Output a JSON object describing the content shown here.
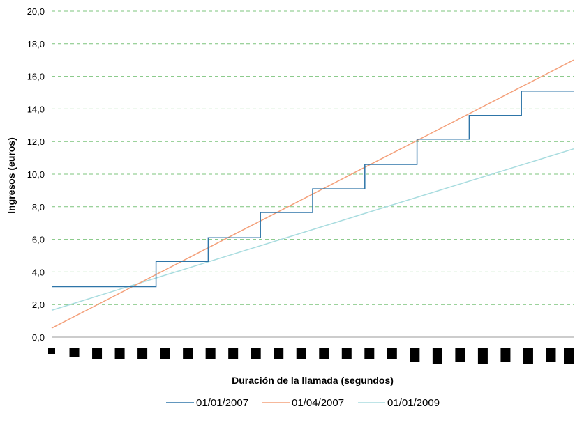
{
  "chart_data": {
    "type": "line",
    "title": "",
    "xlabel": "Duración de la llamada (segundos)",
    "ylabel": "Ingresos (euros)",
    "ylim": [
      0,
      20
    ],
    "yticks": [
      "0,0",
      "2,0",
      "4,0",
      "6,0",
      "8,0",
      "10,0",
      "12,0",
      "14,0",
      "16,0",
      "18,0",
      "20,0"
    ],
    "grid": "horizontal dashed",
    "legend_position": "bottom",
    "x_tick_labels": "illegible (rendered as black blocks)",
    "x_range": [
      0,
      1500
    ],
    "series": [
      {
        "name": "01/01/2007",
        "color": "#2e75a8",
        "style": "step",
        "x": [
          0,
          300,
          300,
          450,
          450,
          600,
          600,
          750,
          750,
          900,
          900,
          1050,
          1050,
          1200,
          1200,
          1350,
          1350,
          1500
        ],
        "y": [
          3.1,
          3.1,
          4.65,
          4.65,
          6.1,
          6.1,
          7.65,
          7.65,
          9.1,
          9.1,
          10.6,
          10.6,
          12.15,
          12.15,
          13.6,
          13.6,
          15.1,
          15.1
        ]
      },
      {
        "name": "01/04/2007",
        "color": "#f4a07a",
        "style": "linear",
        "x": [
          0,
          1500
        ],
        "y": [
          0.55,
          17.0
        ]
      },
      {
        "name": "01/01/2009",
        "color": "#a8dcdf",
        "style": "linear",
        "x": [
          0,
          1500
        ],
        "y": [
          1.65,
          11.55
        ]
      }
    ]
  }
}
